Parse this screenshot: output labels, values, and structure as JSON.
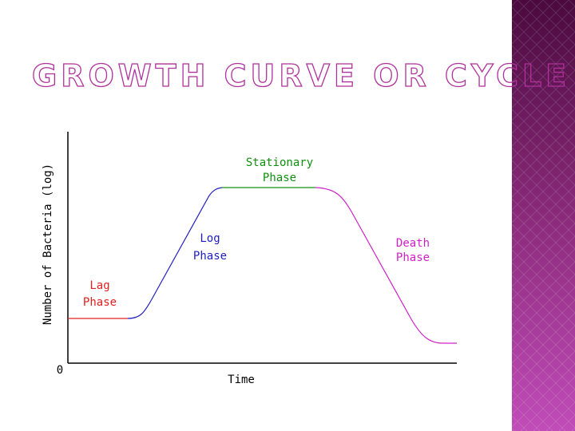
{
  "slide": {
    "title": "GROWTH CURVE OR CYCLE"
  },
  "diagram": {
    "y_axis_label": "Number of Bacteria (log)",
    "x_axis_label": "Time",
    "origin_label": "0",
    "phases": [
      {
        "line1": "Lag",
        "line2": "Phase"
      },
      {
        "line1": "Log",
        "line2": "Phase"
      },
      {
        "line1": "Stationary",
        "line2": "Phase"
      },
      {
        "line1": "Death",
        "line2": "Phase"
      }
    ]
  }
}
